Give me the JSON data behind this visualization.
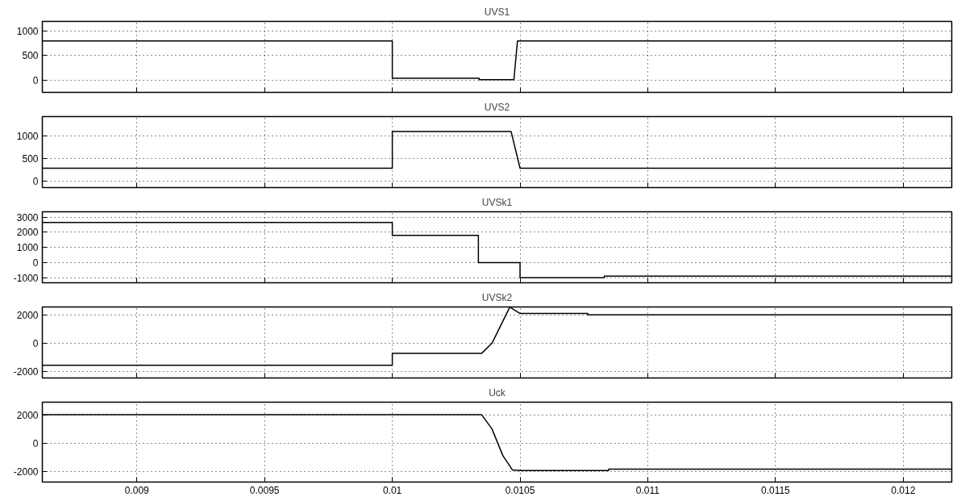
{
  "chart_data": [
    {
      "type": "line",
      "title": "UVS1",
      "xlim": [
        0.00863,
        0.01219
      ],
      "xticks": [
        0.009,
        0.0095,
        0.01,
        0.0105,
        0.011,
        0.0115,
        0.012
      ],
      "ylim": [
        -250,
        1200
      ],
      "yticks": [
        0,
        500,
        1000
      ],
      "grid": true,
      "tick_labels": "y",
      "series": [
        {
          "color": "#000000",
          "x": [
            0.00863,
            0.01,
            0.01,
            0.01034,
            0.01034,
            0.010476,
            0.01049,
            0.01219
          ],
          "values": [
            800,
            800,
            40,
            40,
            10,
            10,
            800,
            800
          ]
        }
      ]
    },
    {
      "type": "line",
      "title": "UVS2",
      "xlim": [
        0.00863,
        0.01219
      ],
      "xticks": [
        0.009,
        0.0095,
        0.01,
        0.0105,
        0.011,
        0.0115,
        0.012
      ],
      "ylim": [
        -150,
        1430
      ],
      "yticks": [
        0,
        500,
        1000
      ],
      "grid": true,
      "tick_labels": "y",
      "series": [
        {
          "color": "#000000",
          "x": [
            0.00863,
            0.01,
            0.01,
            0.010465,
            0.0105,
            0.01219
          ],
          "values": [
            280,
            280,
            1100,
            1100,
            280,
            280
          ]
        }
      ]
    },
    {
      "type": "line",
      "title": "UVSk1",
      "xlim": [
        0.00863,
        0.01219
      ],
      "xticks": [
        0.009,
        0.0095,
        0.01,
        0.0105,
        0.011,
        0.0115,
        0.012
      ],
      "ylim": [
        -1340,
        3360
      ],
      "yticks": [
        -1000,
        0,
        1000,
        2000,
        3000
      ],
      "grid": true,
      "tick_labels": "y",
      "series": [
        {
          "color": "#000000",
          "x": [
            0.00863,
            0.01,
            0.01,
            0.010337,
            0.010337,
            0.0105,
            0.0105,
            0.01083,
            0.01083,
            0.01219
          ],
          "values": [
            2650,
            2650,
            1800,
            1800,
            0,
            0,
            -1000,
            -1000,
            -900,
            -900
          ]
        }
      ]
    },
    {
      "type": "line",
      "title": "UVSk2",
      "xlim": [
        0.00863,
        0.01219
      ],
      "xticks": [
        0.009,
        0.0095,
        0.01,
        0.0105,
        0.011,
        0.0115,
        0.012
      ],
      "ylim": [
        -2440,
        2560
      ],
      "yticks": [
        -2000,
        0,
        2000
      ],
      "grid": true,
      "tick_labels": "y",
      "series": [
        {
          "color": "#000000",
          "x": [
            0.00863,
            0.01,
            0.01,
            0.01035,
            0.01039,
            0.01046,
            0.0105,
            0.010765,
            0.010765,
            0.01219
          ],
          "values": [
            -1550,
            -1550,
            -700,
            -700,
            0,
            2550,
            2100,
            2100,
            2000,
            2000
          ]
        }
      ]
    },
    {
      "type": "line",
      "title": "Uck",
      "xlim": [
        0.00863,
        0.01219
      ],
      "xticks": [
        0.009,
        0.0095,
        0.01,
        0.0105,
        0.011,
        0.0115,
        0.012
      ],
      "ylim": [
        -2760,
        2890
      ],
      "yticks": [
        -2000,
        0,
        2000
      ],
      "grid": true,
      "series": [
        {
          "color": "#000000",
          "x": [
            0.00863,
            0.01035,
            0.01039,
            0.010433,
            0.01047,
            0.0105,
            0.010847,
            0.010847,
            0.01219
          ],
          "values": [
            2000,
            2000,
            1000,
            -900,
            -1900,
            -1950,
            -1950,
            -1850,
            -1850
          ]
        }
      ]
    }
  ]
}
